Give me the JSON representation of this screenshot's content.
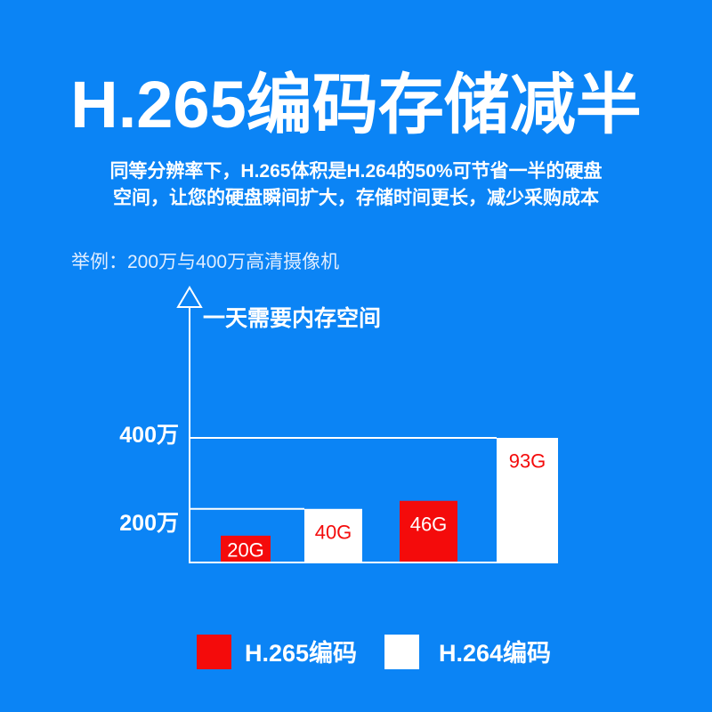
{
  "header": {
    "title": "H.265编码存储减半",
    "subtitle_lines": [
      "同等分辨率下，H.265体积是H.264的50%可节省一半的硬盘",
      "空间，让您的硬盘瞬间扩大，存储时间更长，减少采购成本"
    ]
  },
  "example_note": "举例：200万与400万高清摄像机",
  "colors": {
    "background": "#0b84f5",
    "text": "#ffffff",
    "axis": "#ffffff"
  },
  "chart_data": {
    "type": "bar",
    "ylabel": "一天需要内存空间",
    "categories": [
      "200万",
      "400万"
    ],
    "series": [
      {
        "name": "H.265编码",
        "color": "#f40b0b",
        "values": [
          20,
          46
        ],
        "data_labels": [
          "20G",
          "46G"
        ]
      },
      {
        "name": "H.264编码",
        "color": "#ffffff",
        "values": [
          40,
          93
        ],
        "data_labels": [
          "40G",
          "93G"
        ]
      }
    ],
    "grid": false,
    "legend": "bottom"
  }
}
